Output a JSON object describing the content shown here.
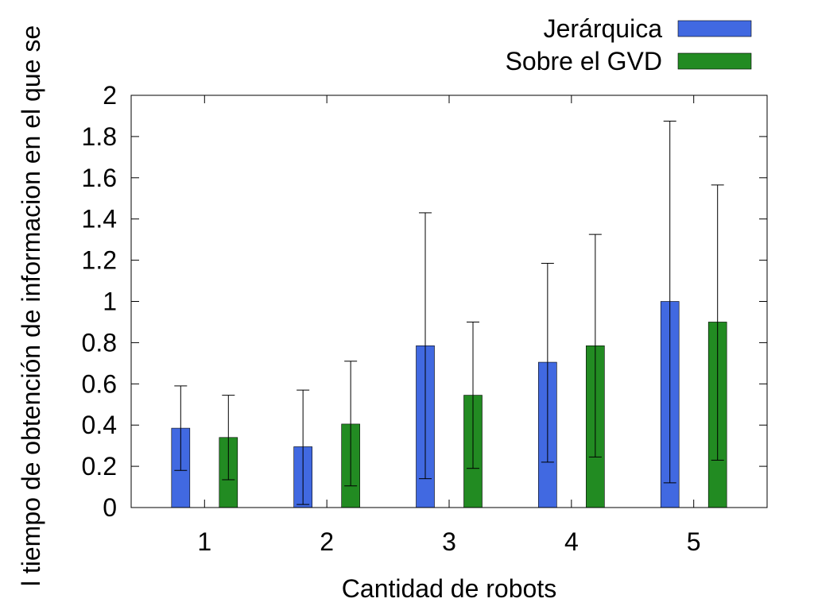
{
  "chart_data": {
    "type": "bar",
    "xlabel": "Cantidad de robots",
    "ylabel": "l tiempo de obtención de informacion en el que se",
    "categories": [
      "1",
      "2",
      "3",
      "4",
      "5"
    ],
    "ylim": [
      0,
      2
    ],
    "yticks": [
      "0",
      "0.2",
      "0.4",
      "0.6",
      "0.8",
      "1",
      "1.2",
      "1.4",
      "1.6",
      "1.8",
      "2"
    ],
    "legend_position": "top-right",
    "series": [
      {
        "name": "Jerárquica",
        "color": "#4169e1",
        "values": [
          0.385,
          0.295,
          0.785,
          0.705,
          1.0
        ],
        "err_low": [
          0.18,
          0.015,
          0.14,
          0.22,
          0.12
        ],
        "err_high": [
          0.59,
          0.57,
          1.43,
          1.185,
          1.875
        ]
      },
      {
        "name": "Sobre el GVD",
        "color": "#228b22",
        "values": [
          0.34,
          0.405,
          0.545,
          0.785,
          0.9
        ],
        "err_low": [
          0.135,
          0.105,
          0.19,
          0.245,
          0.23
        ],
        "err_high": [
          0.545,
          0.71,
          0.9,
          1.325,
          1.565
        ]
      }
    ]
  }
}
